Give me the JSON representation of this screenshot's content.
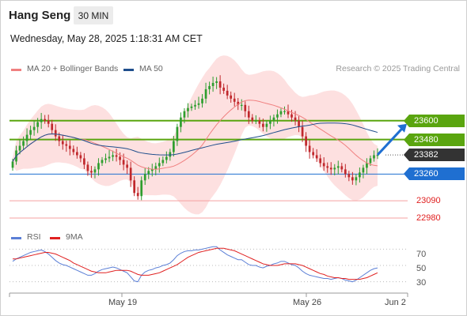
{
  "header": {
    "instrument": "Hang Seng",
    "timeframe": "30 MIN",
    "datetime": "Wednesday, May 28, 2025 1:18:31 AM CET"
  },
  "legend": {
    "ma20_bb": "MA 20 + Bollinger Bands",
    "ma50": "MA 50",
    "source": "Research © 2025 Trading Central",
    "rsi": "RSI",
    "rsi_ma": "9MA"
  },
  "colors": {
    "resistance": "#5aa50f",
    "support": "#1f6fd1",
    "last_price": "#333333",
    "secondary_support": "#e02020",
    "ma20_bb": "#f08080",
    "ma50": "#1f4e8c",
    "rsi": "#5b7fd6",
    "rsi_ma": "#e02020",
    "candle_up": "#2e9e2e",
    "candle_down": "#c0282c"
  },
  "levels": [
    {
      "label": "23600",
      "value": 23600,
      "kind": "resistance"
    },
    {
      "label": "23480",
      "value": 23480,
      "kind": "resistance"
    },
    {
      "label": "23382",
      "value": 23382,
      "kind": "last"
    },
    {
      "label": "23260",
      "value": 23260,
      "kind": "support"
    },
    {
      "label": "23090",
      "value": 23090,
      "kind": "secondary_support"
    },
    {
      "label": "22980",
      "value": 22980,
      "kind": "secondary_support"
    }
  ],
  "x_axis": {
    "ticks": [
      "May 19",
      "May 26",
      "Jun 2"
    ]
  },
  "rsi_axis": {
    "ticks": [
      "70",
      "50",
      "30"
    ]
  },
  "chart_data": {
    "type": "candlestick",
    "price_ylim": [
      22930,
      23880
    ],
    "rsi_ylim": [
      20,
      80
    ],
    "close": [
      23340,
      23410,
      23440,
      23470,
      23510,
      23540,
      23560,
      23590,
      23610,
      23600,
      23580,
      23540,
      23500,
      23470,
      23450,
      23440,
      23420,
      23400,
      23380,
      23360,
      23320,
      23280,
      23270,
      23290,
      23330,
      23350,
      23360,
      23370,
      23380,
      23370,
      23350,
      23320,
      23300,
      23220,
      23140,
      23120,
      23220,
      23260,
      23280,
      23290,
      23310,
      23330,
      23350,
      23370,
      23400,
      23470,
      23560,
      23620,
      23660,
      23680,
      23690,
      23700,
      23710,
      23740,
      23800,
      23820,
      23840,
      23850,
      23810,
      23790,
      23760,
      23740,
      23720,
      23700,
      23700,
      23660,
      23620,
      23600,
      23600,
      23580,
      23560,
      23580,
      23600,
      23620,
      23640,
      23660,
      23660,
      23640,
      23620,
      23600,
      23560,
      23500,
      23440,
      23400,
      23380,
      23360,
      23330,
      23310,
      23300,
      23290,
      23300,
      23310,
      23290,
      23260,
      23240,
      23220,
      23240,
      23270,
      23300,
      23330,
      23360,
      23380,
      23382
    ],
    "open": [
      23300,
      23340,
      23410,
      23440,
      23470,
      23510,
      23540,
      23560,
      23590,
      23610,
      23600,
      23580,
      23540,
      23500,
      23470,
      23450,
      23440,
      23420,
      23400,
      23380,
      23360,
      23320,
      23280,
      23270,
      23290,
      23330,
      23350,
      23360,
      23370,
      23380,
      23370,
      23350,
      23320,
      23300,
      23220,
      23140,
      23120,
      23220,
      23260,
      23280,
      23290,
      23310,
      23330,
      23350,
      23370,
      23400,
      23470,
      23560,
      23620,
      23660,
      23680,
      23690,
      23700,
      23710,
      23740,
      23800,
      23820,
      23840,
      23850,
      23810,
      23790,
      23760,
      23740,
      23720,
      23700,
      23700,
      23660,
      23620,
      23600,
      23600,
      23580,
      23560,
      23580,
      23600,
      23620,
      23640,
      23660,
      23660,
      23640,
      23620,
      23600,
      23560,
      23500,
      23440,
      23400,
      23380,
      23360,
      23330,
      23310,
      23300,
      23290,
      23300,
      23310,
      23290,
      23260,
      23240,
      23220,
      23240,
      23270,
      23300,
      23330,
      23360,
      23380
    ],
    "rsi": [
      55,
      58,
      60,
      62,
      64,
      66,
      67,
      68,
      69,
      67,
      64,
      60,
      56,
      53,
      51,
      50,
      48,
      46,
      44,
      42,
      40,
      38,
      38,
      40,
      43,
      45,
      46,
      47,
      48,
      47,
      45,
      43,
      41,
      36,
      31,
      30,
      38,
      42,
      44,
      45,
      47,
      48,
      50,
      51,
      53,
      57,
      62,
      65,
      67,
      68,
      68,
      69,
      69,
      70,
      71,
      72,
      73,
      73,
      69,
      66,
      63,
      61,
      59,
      57,
      57,
      54,
      51,
      50,
      50,
      48,
      47,
      49,
      50,
      52,
      53,
      55,
      55,
      53,
      51,
      50,
      47,
      43,
      40,
      38,
      37,
      36,
      35,
      34,
      34,
      33,
      34,
      35,
      34,
      32,
      31,
      30,
      32,
      35,
      38,
      41,
      44,
      46,
      47
    ],
    "rsi_ma": [
      58,
      58,
      59,
      60,
      61,
      62,
      63,
      64,
      65,
      66,
      66,
      65,
      64,
      62,
      60,
      58,
      56,
      53,
      51,
      49,
      47,
      45,
      43,
      42,
      41,
      41,
      41,
      42,
      43,
      44,
      44,
      44,
      44,
      43,
      41,
      39,
      38,
      38,
      38,
      39,
      40,
      41,
      43,
      45,
      47,
      49,
      51,
      54,
      57,
      60,
      62,
      64,
      66,
      67,
      68,
      69,
      70,
      71,
      71,
      71,
      70,
      69,
      68,
      66,
      64,
      62,
      60,
      58,
      56,
      54,
      52,
      51,
      50,
      50,
      50,
      51,
      52,
      52,
      52,
      52,
      51,
      50,
      48,
      46,
      44,
      42,
      40,
      39,
      37,
      36,
      35,
      35,
      34,
      34,
      33,
      33,
      33,
      33,
      34,
      35,
      37,
      39,
      41
    ]
  }
}
